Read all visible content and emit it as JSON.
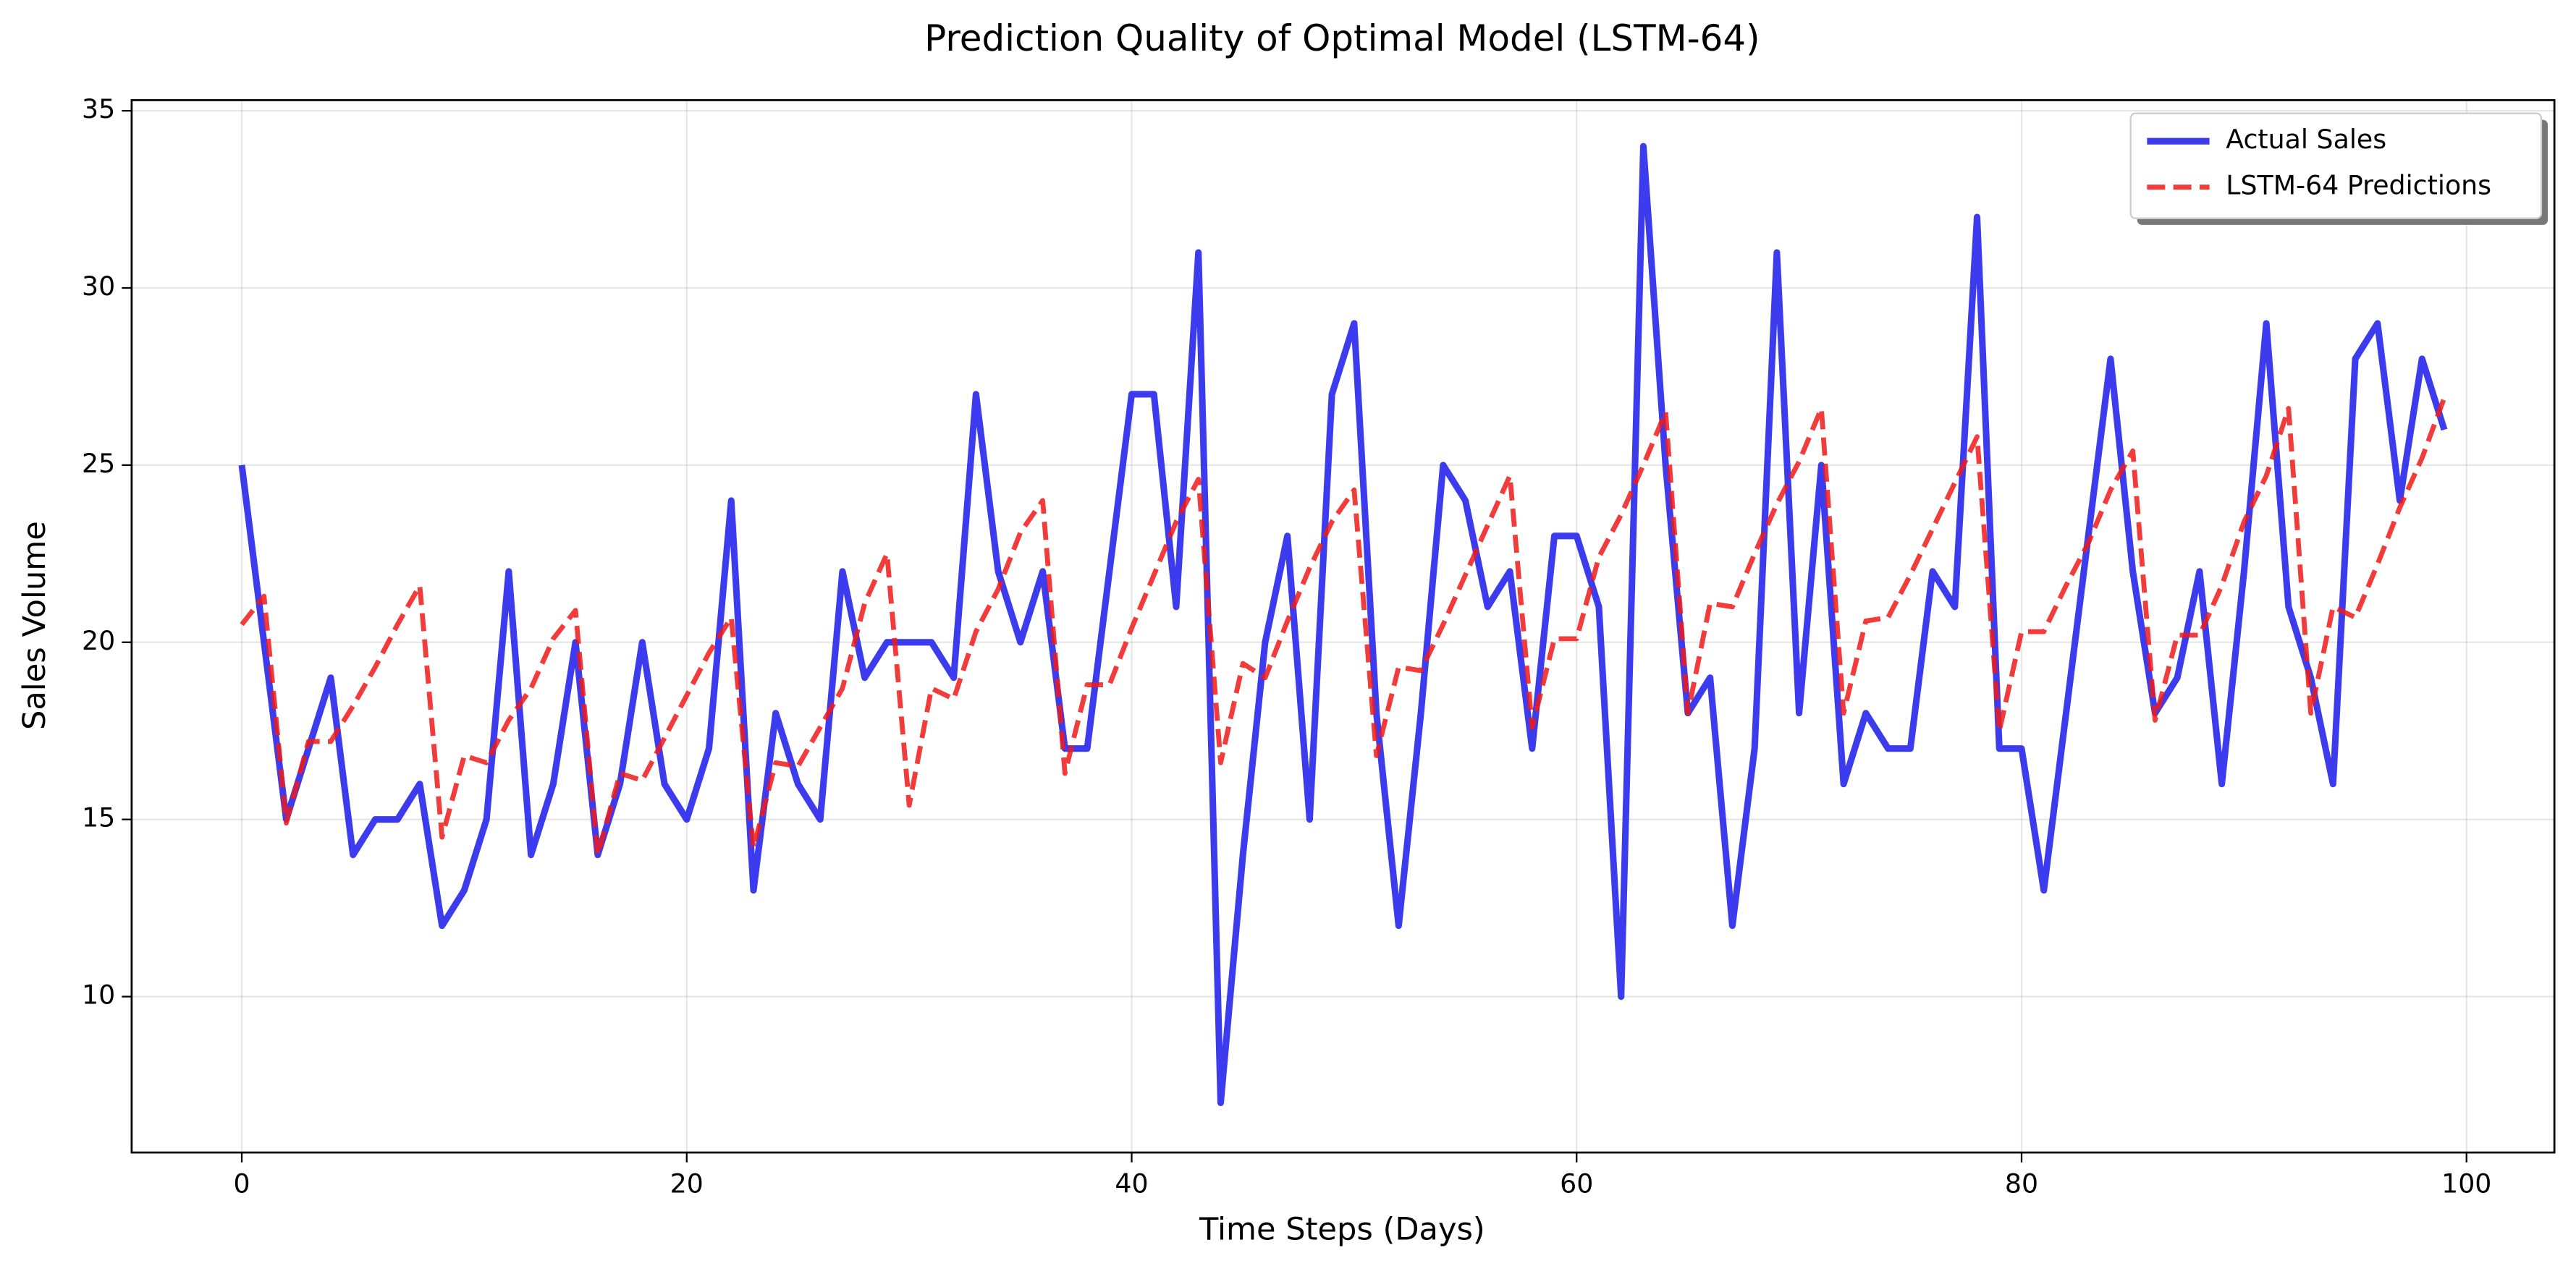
{
  "chart_data": {
    "type": "line",
    "title": "Prediction Quality of Optimal Model (LSTM-64)",
    "x_label": "Time Steps (Days)",
    "y_label": "Sales Volume",
    "x": [
      0,
      1,
      2,
      3,
      4,
      5,
      6,
      7,
      8,
      9,
      10,
      11,
      12,
      13,
      14,
      15,
      16,
      17,
      18,
      19,
      20,
      21,
      22,
      23,
      24,
      25,
      26,
      27,
      28,
      29,
      30,
      31,
      32,
      33,
      34,
      35,
      36,
      37,
      38,
      39,
      40,
      41,
      42,
      43,
      44,
      45,
      46,
      47,
      48,
      49,
      50,
      51,
      52,
      53,
      54,
      55,
      56,
      57,
      58,
      59,
      60,
      61,
      62,
      63,
      64,
      65,
      66,
      67,
      68,
      69,
      70,
      71,
      72,
      73,
      74,
      75,
      76,
      77,
      78,
      79,
      80,
      81,
      82,
      83,
      84,
      85,
      86,
      87,
      88,
      89,
      90,
      91,
      92,
      93,
      94,
      95,
      96,
      97,
      98,
      99
    ],
    "series": [
      {
        "name": "Actual Sales",
        "color": "#1a1aeb",
        "dash": "solid",
        "values": [
          25,
          20,
          15,
          17,
          19,
          14,
          15,
          15,
          16,
          12,
          13,
          15,
          22,
          14,
          16,
          20,
          14,
          16,
          20,
          16,
          15,
          17,
          24,
          13,
          18,
          16,
          15,
          22,
          19,
          20,
          20,
          20,
          19,
          27,
          22,
          20,
          22,
          17,
          17,
          22,
          27,
          27,
          21,
          31,
          7,
          14,
          20,
          23,
          15,
          27,
          29,
          18,
          12,
          18,
          25,
          24,
          21,
          22,
          17,
          23,
          23,
          21,
          10,
          34,
          25,
          18,
          19,
          12,
          17,
          31,
          18,
          25,
          16,
          18,
          17,
          17,
          22,
          21,
          32,
          17,
          17,
          13,
          18,
          23,
          28,
          22,
          18,
          19,
          22,
          16,
          22,
          29,
          21,
          19,
          16,
          28,
          29,
          24,
          28,
          26
        ]
      },
      {
        "name": "LSTM-64 Predictions",
        "color": "#f01a1a",
        "dash": "dashed",
        "values": [
          20.5,
          21.3,
          14.9,
          17.2,
          17.2,
          18.2,
          19.3,
          20.5,
          21.6,
          14.5,
          16.8,
          16.6,
          17.8,
          18.7,
          20.1,
          20.9,
          14.0,
          16.3,
          16.1,
          17.3,
          18.5,
          19.7,
          20.7,
          14.2,
          16.6,
          16.5,
          17.6,
          18.7,
          21.1,
          22.5,
          15.4,
          18.7,
          18.4,
          20.3,
          21.5,
          23.1,
          24.0,
          16.3,
          18.8,
          18.8,
          20.4,
          21.9,
          23.4,
          24.6,
          16.6,
          19.4,
          19.0,
          20.6,
          22.1,
          23.4,
          24.3,
          16.8,
          19.3,
          19.2,
          20.5,
          21.9,
          23.3,
          24.7,
          17.6,
          20.1,
          20.1,
          22.4,
          23.6,
          25.0,
          26.5,
          18.0,
          21.1,
          21.0,
          22.5,
          23.9,
          25.1,
          26.6,
          18.0,
          20.6,
          20.7,
          21.9,
          23.2,
          24.5,
          25.8,
          17.5,
          20.3,
          20.3,
          21.6,
          22.8,
          24.3,
          25.4,
          17.8,
          20.2,
          20.2,
          21.6,
          23.4,
          24.7,
          26.6,
          18.0,
          21.0,
          20.7,
          22.2,
          23.8,
          25.2,
          26.9
        ]
      }
    ],
    "xlim": [
      -4.95,
      103.95
    ],
    "ylim": [
      5.6,
      35.3
    ],
    "xticks": [
      0,
      20,
      40,
      60,
      80,
      100
    ],
    "yticks": [
      10,
      15,
      20,
      25,
      30,
      35
    ],
    "grid": true,
    "legend": "upper right"
  }
}
